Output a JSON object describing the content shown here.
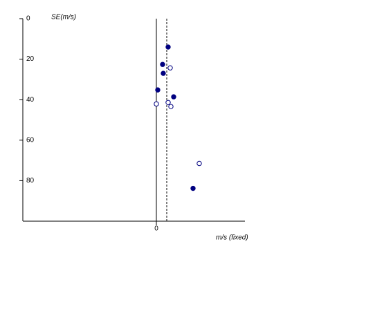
{
  "chart_data": {
    "type": "scatter",
    "x_label": "m/s (fixed)",
    "y_label": "SE(m/s)",
    "xlim": [
      -19.3,
      12.8
    ],
    "xticks": [
      0
    ],
    "ylim": [
      0,
      100
    ],
    "yticks": [
      0,
      20,
      40,
      60,
      80
    ],
    "y_inverted": true,
    "vlines": [
      {
        "value": 0,
        "style": "solid"
      },
      {
        "value": 1.5,
        "style": "dashed"
      }
    ],
    "series": [
      {
        "color": "#000080",
        "fill": "#000080",
        "x": [
          1.7,
          0.9,
          1.0,
          0.2,
          2.5,
          5.3
        ],
        "values": [
          14.0,
          22.6,
          27.0,
          35.2,
          38.6,
          83.8
        ]
      },
      {
        "color": "#000080",
        "fill": "#ffffff",
        "x": [
          2.0,
          0.0,
          1.7,
          2.1,
          6.2
        ],
        "values": [
          24.3,
          42.1,
          41.4,
          43.4,
          71.5
        ]
      }
    ]
  }
}
